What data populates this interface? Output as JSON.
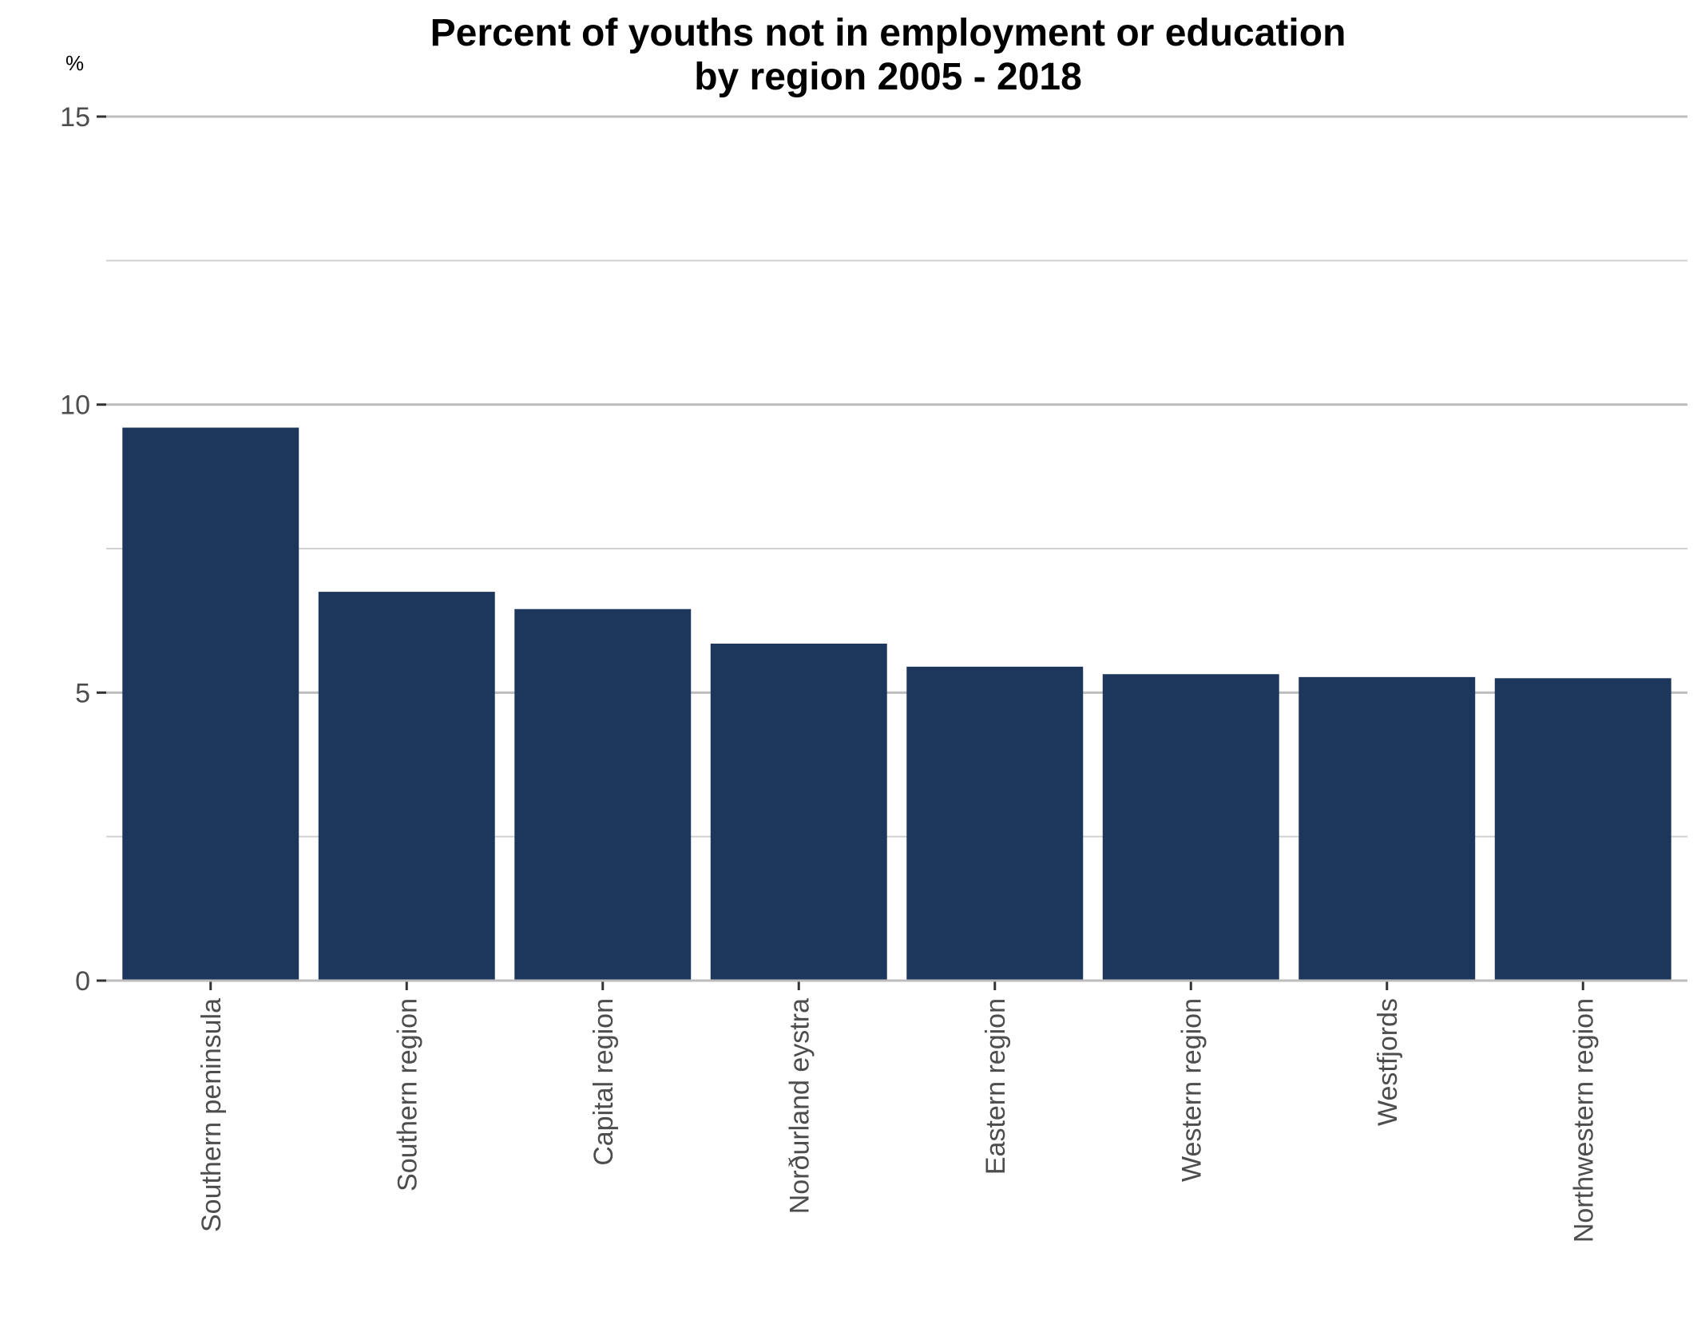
{
  "chart_data": {
    "type": "bar",
    "title": "Percent of youths not in employment or education",
    "subtitle": "by region 2005 - 2018",
    "ylabel": "%",
    "xlabel": "",
    "categories": [
      "Southern peninsula",
      "Southern region",
      "Capital region",
      "Norðurland eystra",
      "Eastern region",
      "Western region",
      "Westfjords",
      "Northwestern region"
    ],
    "values": [
      9.6,
      6.75,
      6.45,
      5.85,
      5.45,
      5.32,
      5.27,
      5.25
    ],
    "ylim": [
      0,
      15
    ],
    "yticks": [
      0,
      5,
      10,
      15
    ],
    "grid": true,
    "colors": {
      "bar": "#1c365c"
    }
  }
}
